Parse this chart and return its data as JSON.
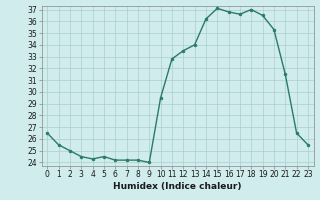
{
  "x": [
    0,
    1,
    2,
    3,
    4,
    5,
    6,
    7,
    8,
    9,
    10,
    11,
    12,
    13,
    14,
    15,
    16,
    17,
    18,
    19,
    20,
    21,
    22,
    23
  ],
  "y": [
    26.5,
    25.5,
    25.0,
    24.5,
    24.3,
    24.5,
    24.2,
    24.2,
    24.2,
    24.0,
    29.5,
    32.8,
    33.5,
    34.0,
    36.2,
    37.1,
    36.8,
    36.6,
    37.0,
    36.5,
    35.3,
    31.5,
    26.5,
    25.5
  ],
  "xlabel": "Humidex (Indice chaleur)",
  "ylabel": "",
  "ylim": [
    23.7,
    37.3
  ],
  "xlim": [
    -0.5,
    23.5
  ],
  "yticks": [
    24,
    25,
    26,
    27,
    28,
    29,
    30,
    31,
    32,
    33,
    34,
    35,
    36,
    37
  ],
  "xticks": [
    0,
    1,
    2,
    3,
    4,
    5,
    6,
    7,
    8,
    9,
    10,
    11,
    12,
    13,
    14,
    15,
    16,
    17,
    18,
    19,
    20,
    21,
    22,
    23
  ],
  "line_color": "#2a7a6a",
  "marker_color": "#2a7a6a",
  "bg_color": "#d0ecec",
  "grid_color": "#aacfcf",
  "line_width": 1.0,
  "marker_size": 2.0,
  "tick_fontsize": 5.5,
  "xlabel_fontsize": 6.5
}
